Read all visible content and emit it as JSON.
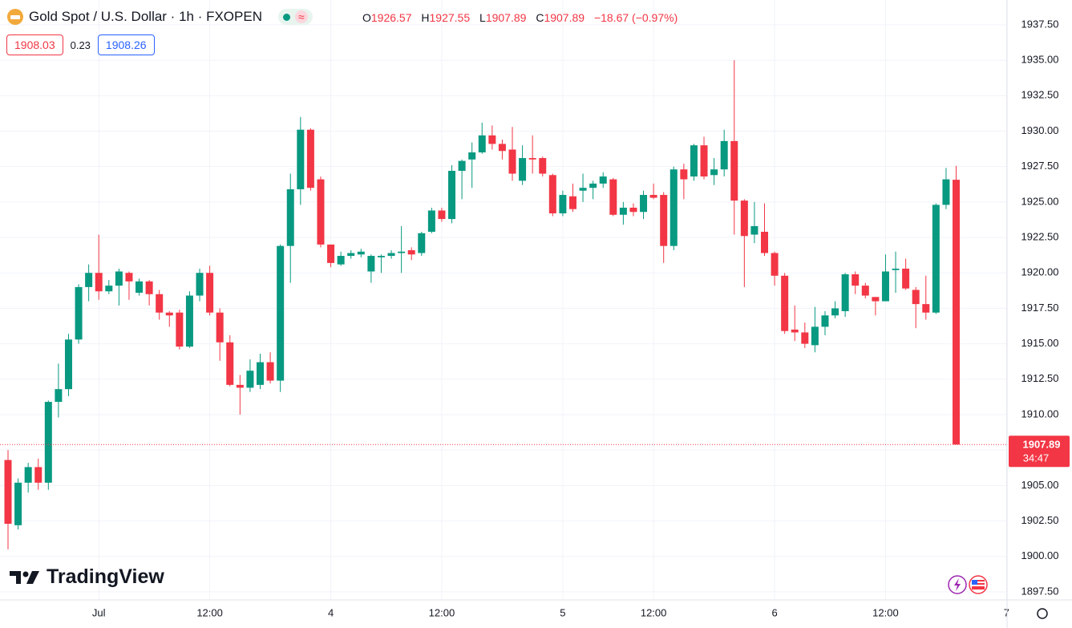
{
  "header": {
    "title": "Gold Spot / U.S. Dollar · 1h · FXOPEN",
    "open_label": "O",
    "open": "1926.57",
    "high_label": "H",
    "high": "1927.55",
    "low_label": "L",
    "low": "1907.89",
    "close_label": "C",
    "close": "1907.89",
    "change": "−18.67 (−0.97%)",
    "sell_price": "1908.03",
    "spread": "0.23",
    "buy_price": "1908.26"
  },
  "watermark": "TradingView",
  "chart_data": {
    "type": "candlestick",
    "up_color": "#089981",
    "down_color": "#f23645",
    "categories": [
      null,
      null,
      null,
      null,
      null,
      null,
      null,
      null,
      null,
      "Jul",
      null,
      null,
      null,
      null,
      null,
      null,
      null,
      null,
      null,
      null,
      "12:00",
      null,
      null,
      null,
      null,
      null,
      null,
      null,
      null,
      null,
      null,
      null,
      "4",
      null,
      null,
      null,
      null,
      null,
      null,
      null,
      null,
      null,
      null,
      "12:00",
      null,
      null,
      null,
      null,
      null,
      null,
      null,
      null,
      null,
      null,
      null,
      "5",
      null,
      null,
      null,
      null,
      null,
      null,
      null,
      null,
      "12:00",
      null,
      null,
      null,
      null,
      null,
      null,
      null,
      null,
      null,
      null,
      null,
      "6",
      null,
      null,
      null,
      null,
      null,
      null,
      null,
      null,
      null,
      null,
      "12:00",
      null,
      null,
      null,
      null,
      null,
      null,
      null,
      null,
      null,
      null,
      null,
      "7"
    ],
    "open": [
      1906.8,
      1902.2,
      1905.2,
      1906.3,
      1905.2,
      1910.9,
      1911.8,
      1915.3,
      1919.0,
      1920.0,
      1918.7,
      1919.1,
      1920.0,
      1918.6,
      1919.4,
      1918.5,
      1917.2,
      1917.2,
      1914.8,
      1918.4,
      1920.0,
      1917.2,
      1915.1,
      1912.1,
      1911.9,
      1912.1,
      1913.7,
      1912.4,
      1921.9,
      1925.9,
      1930.1,
      1926.6,
      1922.0,
      1920.6,
      1921.2,
      1921.3,
      1920.1,
      1921.1,
      1921.2,
      1921.4,
      1921.6,
      1921.4,
      1922.9,
      1924.4,
      1923.8,
      1927.2,
      1928.0,
      1928.5,
      1929.7,
      1929.1,
      1928.7,
      1926.5,
      1928.1,
      1928.1,
      1926.9,
      1924.2,
      1925.4,
      1925.8,
      1926.0,
      1926.3,
      1926.6,
      1924.1,
      1924.6,
      1924.3,
      1925.5,
      1925.5,
      1921.9,
      1927.3,
      1926.8,
      1929.0,
      1926.9,
      1927.3,
      1929.3,
      1925.1,
      1922.7,
      1922.9,
      1921.4,
      1919.8,
      1916.0,
      1915.8,
      1914.9,
      1916.2,
      1917.0,
      1917.3,
      1919.9,
      1919.1,
      1918.3,
      1918.0,
      1920.2,
      1920.3,
      1918.8,
      1917.8,
      1917.2,
      1924.8,
      1926.57,
      null,
      null,
      null,
      null,
      null
    ],
    "high": [
      1907.5,
      1905.5,
      1906.6,
      1906.9,
      1911.0,
      1913.6,
      1915.7,
      1919.2,
      1920.6,
      1922.7,
      1919.5,
      1920.3,
      1920.1,
      1919.6,
      1919.5,
      1918.8,
      1917.3,
      1917.4,
      1918.7,
      1920.3,
      1920.5,
      1917.5,
      1915.6,
      1912.8,
      1913.9,
      1914.3,
      1914.4,
      1922.0,
      1927.0,
      1931.0,
      1930.2,
      1926.8,
      1922.0,
      1921.5,
      1921.6,
      1921.7,
      1921.3,
      1921.3,
      1921.6,
      1923.3,
      1921.8,
      1922.9,
      1924.6,
      1924.6,
      1927.6,
      1928.0,
      1929.2,
      1930.6,
      1930.4,
      1929.4,
      1930.3,
      1929.0,
      1929.7,
      1928.2,
      1927.0,
      1925.8,
      1926.3,
      1927.0,
      1926.5,
      1927.1,
      1926.7,
      1925.0,
      1924.9,
      1925.8,
      1926.3,
      1925.7,
      1927.5,
      1927.7,
      1929.1,
      1929.6,
      1928.1,
      1930.1,
      1935.0,
      1925.2,
      1925.0,
      1924.9,
      1921.5,
      1920.0,
      1917.7,
      1916.5,
      1917.6,
      1917.3,
      1918.0,
      1920.0,
      1920.1,
      1919.3,
      1918.3,
      1921.3,
      1921.5,
      1921.0,
      1919.0,
      1919.8,
      1924.9,
      1927.4,
      1927.55,
      null,
      null,
      null,
      null,
      null
    ],
    "low": [
      1900.5,
      1901.9,
      1904.5,
      1904.7,
      1904.7,
      1909.8,
      1911.3,
      1915.0,
      1918.0,
      1918.1,
      1918.5,
      1917.7,
      1918.1,
      1918.4,
      1917.7,
      1916.7,
      1916.2,
      1914.6,
      1914.7,
      1918.0,
      1917.0,
      1913.8,
      1912.0,
      1910.0,
      1911.6,
      1911.8,
      1912.2,
      1911.6,
      1919.3,
      1924.8,
      1925.8,
      1921.8,
      1920.4,
      1920.5,
      1921.0,
      1921.1,
      1919.3,
      1920.0,
      1921.0,
      1920.0,
      1920.9,
      1921.2,
      1922.8,
      1923.6,
      1923.5,
      1925.2,
      1926.0,
      1928.4,
      1928.7,
      1928.0,
      1926.5,
      1926.2,
      1927.0,
      1926.8,
      1924.0,
      1924.0,
      1924.3,
      1925.0,
      1925.2,
      1926.0,
      1924.0,
      1923.4,
      1924.0,
      1923.8,
      1925.2,
      1920.7,
      1921.6,
      1925.2,
      1926.5,
      1926.6,
      1926.2,
      1926.8,
      1922.7,
      1919.0,
      1922.1,
      1921.2,
      1919.1,
      1915.7,
      1915.2,
      1914.7,
      1914.4,
      1915.6,
      1916.8,
      1916.9,
      1918.5,
      1918.2,
      1917.0,
      1918.0,
      1918.6,
      1918.8,
      1916.1,
      1916.7,
      1917.1,
      1924.5,
      1907.89,
      null,
      null,
      null,
      null,
      null
    ],
    "close": [
      1902.3,
      1905.2,
      1906.3,
      1905.2,
      1910.9,
      1911.8,
      1915.3,
      1919.0,
      1920.0,
      1918.7,
      1919.1,
      1920.1,
      1919.4,
      1919.4,
      1918.5,
      1917.2,
      1917.0,
      1914.8,
      1918.4,
      1920.0,
      1917.2,
      1915.1,
      1912.1,
      1911.9,
      1913.1,
      1913.7,
      1912.4,
      1921.9,
      1925.9,
      1930.1,
      1926.0,
      1922.0,
      1920.7,
      1921.2,
      1921.4,
      1921.5,
      1921.2,
      1921.2,
      1921.4,
      1921.5,
      1921.3,
      1922.8,
      1924.4,
      1923.8,
      1927.2,
      1927.9,
      1928.5,
      1929.7,
      1929.1,
      1928.6,
      1927.0,
      1928.1,
      1928.0,
      1927.0,
      1924.2,
      1925.5,
      1924.5,
      1926.0,
      1926.3,
      1926.8,
      1924.1,
      1924.6,
      1924.3,
      1925.5,
      1925.3,
      1921.9,
      1927.3,
      1926.6,
      1929.0,
      1926.8,
      1927.3,
      1929.3,
      1925.1,
      1922.6,
      1923.3,
      1921.4,
      1919.8,
      1915.9,
      1915.8,
      1915.0,
      1916.2,
      1917.0,
      1917.5,
      1919.9,
      1919.1,
      1918.4,
      1918.0,
      1920.1,
      1920.3,
      1918.9,
      1917.8,
      1917.2,
      1924.8,
      1926.6,
      1907.89,
      null,
      null,
      null,
      null,
      null
    ],
    "ylim": [
      1896.93,
      1939.25
    ],
    "yticks": [
      {
        "value": 1897.5,
        "label": "1897.50"
      },
      {
        "value": 1900,
        "label": "1900.00"
      },
      {
        "value": 1902.5,
        "label": "1902.50"
      },
      {
        "value": 1905,
        "label": "1905.00"
      },
      {
        "value": 1907.5,
        "label": "1907.50"
      },
      {
        "value": 1910,
        "label": "1910.00"
      },
      {
        "value": 1912.5,
        "label": "1912.50"
      },
      {
        "value": 1915,
        "label": "1915.00"
      },
      {
        "value": 1917.5,
        "label": "1917.50"
      },
      {
        "value": 1920,
        "label": "1920.00"
      },
      {
        "value": 1922.5,
        "label": "1922.50"
      },
      {
        "value": 1925,
        "label": "1925.00"
      },
      {
        "value": 1927.5,
        "label": "1927.50"
      },
      {
        "value": 1930,
        "label": "1930.00"
      },
      {
        "value": 1932.5,
        "label": "1932.50"
      },
      {
        "value": 1935,
        "label": "1935.00"
      },
      {
        "value": 1937.5,
        "label": "1937.50"
      }
    ],
    "grid": true,
    "last_price": {
      "value": 1907.89,
      "label": "1907.89",
      "countdown": "34:47"
    }
  }
}
